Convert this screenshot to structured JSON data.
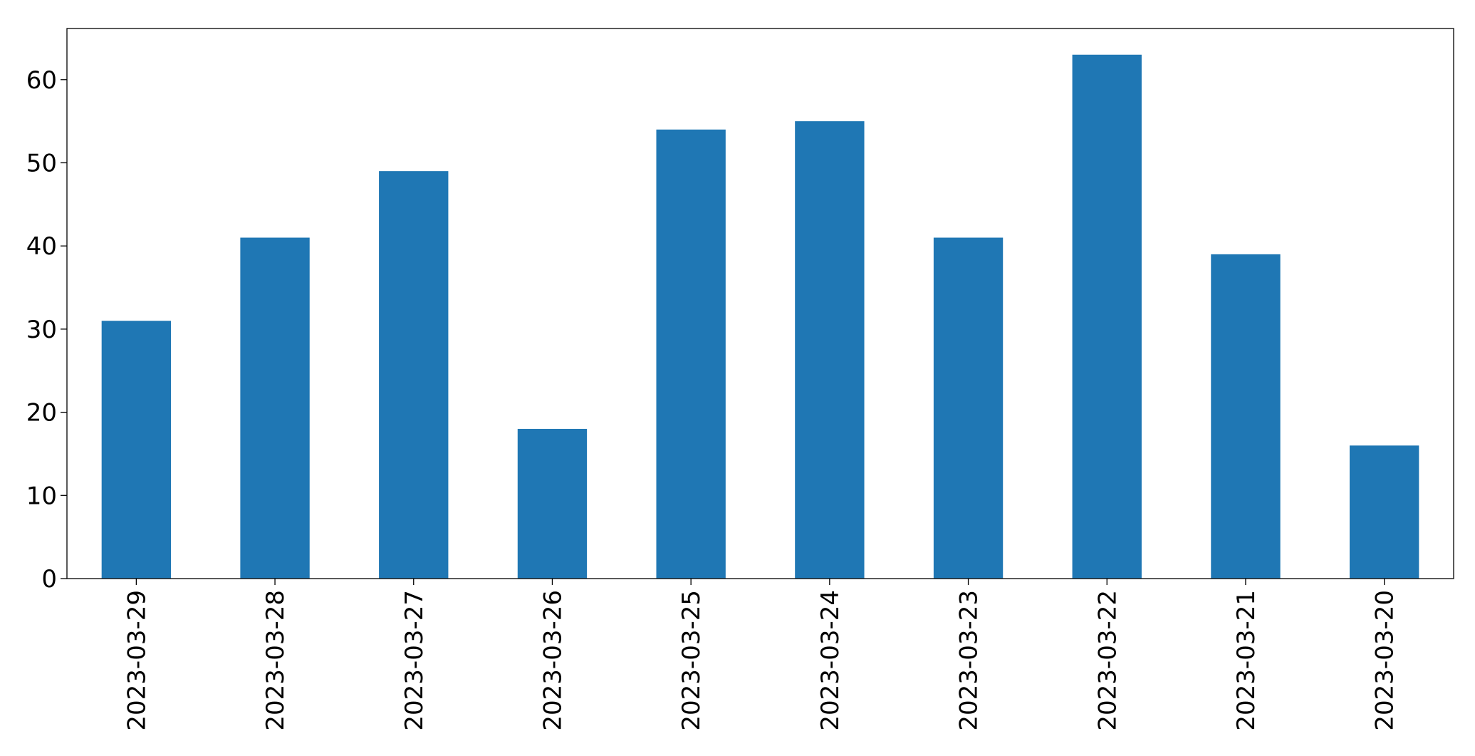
{
  "chart_data": {
    "type": "bar",
    "categories": [
      "2023-03-29",
      "2023-03-28",
      "2023-03-27",
      "2023-03-26",
      "2023-03-25",
      "2023-03-24",
      "2023-03-23",
      "2023-03-22",
      "2023-03-21",
      "2023-03-20"
    ],
    "values": [
      31,
      41,
      49,
      18,
      54,
      55,
      41,
      63,
      39,
      16
    ],
    "color": "#1f77b4",
    "ylim": [
      0,
      66.15
    ],
    "yticks": [
      0,
      10,
      20,
      30,
      40,
      50,
      60
    ],
    "grid": false
  }
}
